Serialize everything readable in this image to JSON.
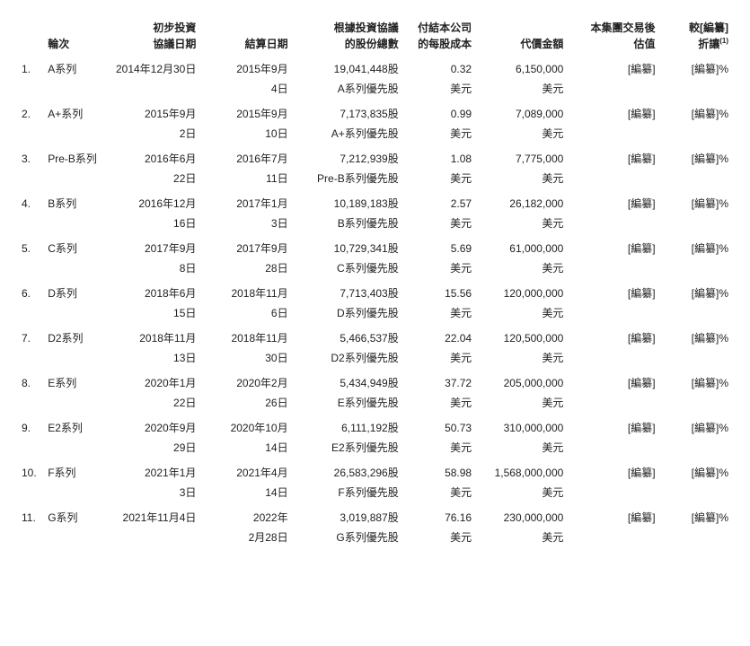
{
  "headers": {
    "round": "輪次",
    "initial_date": "初步投資\n協議日期",
    "closing_date": "結算日期",
    "total_shares": "根據投資協議\n的股份總數",
    "cost_per_share": "付結本公司\n的每股成本",
    "consideration": "代價金額",
    "valuation": "本集團交易後\n估值",
    "discount": "較[編纂]\n折讓",
    "discount_sup": "(1)"
  },
  "rows": [
    {
      "num": "1.",
      "round": "A系列",
      "initial_date_l1": "2014年12月30日",
      "initial_date_l2": "",
      "closing_date_l1": "2015年9月",
      "closing_date_l2": "4日",
      "shares_l1": "19,041,448股",
      "shares_l2": "A系列優先股",
      "cost_l1": "0.32",
      "cost_l2": "美元",
      "amount_l1": "6,150,000",
      "amount_l2": "美元",
      "valuation": "[編纂]",
      "discount": "[編纂]%"
    },
    {
      "num": "2.",
      "round": "A+系列",
      "initial_date_l1": "2015年9月",
      "initial_date_l2": "2日",
      "closing_date_l1": "2015年9月",
      "closing_date_l2": "10日",
      "shares_l1": "7,173,835股",
      "shares_l2": "A+系列優先股",
      "cost_l1": "0.99",
      "cost_l2": "美元",
      "amount_l1": "7,089,000",
      "amount_l2": "美元",
      "valuation": "[編纂]",
      "discount": "[編纂]%"
    },
    {
      "num": "3.",
      "round": "Pre-B系列",
      "initial_date_l1": "2016年6月",
      "initial_date_l2": "22日",
      "closing_date_l1": "2016年7月",
      "closing_date_l2": "11日",
      "shares_l1": "7,212,939股",
      "shares_l2": "Pre-B系列優先股",
      "cost_l1": "1.08",
      "cost_l2": "美元",
      "amount_l1": "7,775,000",
      "amount_l2": "美元",
      "valuation": "[編纂]",
      "discount": "[編纂]%"
    },
    {
      "num": "4.",
      "round": "B系列",
      "initial_date_l1": "2016年12月",
      "initial_date_l2": "16日",
      "closing_date_l1": "2017年1月",
      "closing_date_l2": "3日",
      "shares_l1": "10,189,183股",
      "shares_l2": "B系列優先股",
      "cost_l1": "2.57",
      "cost_l2": "美元",
      "amount_l1": "26,182,000",
      "amount_l2": "美元",
      "valuation": "[編纂]",
      "discount": "[編纂]%"
    },
    {
      "num": "5.",
      "round": "C系列",
      "initial_date_l1": "2017年9月",
      "initial_date_l2": "8日",
      "closing_date_l1": "2017年9月",
      "closing_date_l2": "28日",
      "shares_l1": "10,729,341股",
      "shares_l2": "C系列優先股",
      "cost_l1": "5.69",
      "cost_l2": "美元",
      "amount_l1": "61,000,000",
      "amount_l2": "美元",
      "valuation": "[編纂]",
      "discount": "[編纂]%"
    },
    {
      "num": "6.",
      "round": "D系列",
      "initial_date_l1": "2018年6月",
      "initial_date_l2": "15日",
      "closing_date_l1": "2018年11月",
      "closing_date_l2": "6日",
      "shares_l1": "7,713,403股",
      "shares_l2": "D系列優先股",
      "cost_l1": "15.56",
      "cost_l2": "美元",
      "amount_l1": "120,000,000",
      "amount_l2": "美元",
      "valuation": "[編纂]",
      "discount": "[編纂]%"
    },
    {
      "num": "7.",
      "round": "D2系列",
      "initial_date_l1": "2018年11月",
      "initial_date_l2": "13日",
      "closing_date_l1": "2018年11月",
      "closing_date_l2": "30日",
      "shares_l1": "5,466,537股",
      "shares_l2": "D2系列優先股",
      "cost_l1": "22.04",
      "cost_l2": "美元",
      "amount_l1": "120,500,000",
      "amount_l2": "美元",
      "valuation": "[編纂]",
      "discount": "[編纂]%"
    },
    {
      "num": "8.",
      "round": "E系列",
      "initial_date_l1": "2020年1月",
      "initial_date_l2": "22日",
      "closing_date_l1": "2020年2月",
      "closing_date_l2": "26日",
      "shares_l1": "5,434,949股",
      "shares_l2": "E系列優先股",
      "cost_l1": "37.72",
      "cost_l2": "美元",
      "amount_l1": "205,000,000",
      "amount_l2": "美元",
      "valuation": "[編纂]",
      "discount": "[編纂]%"
    },
    {
      "num": "9.",
      "round": "E2系列",
      "initial_date_l1": "2020年9月",
      "initial_date_l2": "29日",
      "closing_date_l1": "2020年10月",
      "closing_date_l2": "14日",
      "shares_l1": "6,111,192股",
      "shares_l2": "E2系列優先股",
      "cost_l1": "50.73",
      "cost_l2": "美元",
      "amount_l1": "310,000,000",
      "amount_l2": "美元",
      "valuation": "[編纂]",
      "discount": "[編纂]%"
    },
    {
      "num": "10.",
      "round": "F系列",
      "initial_date_l1": "2021年1月",
      "initial_date_l2": "3日",
      "closing_date_l1": "2021年4月",
      "closing_date_l2": "14日",
      "shares_l1": "26,583,296股",
      "shares_l2": "F系列優先股",
      "cost_l1": "58.98",
      "cost_l2": "美元",
      "amount_l1": "1,568,000,000",
      "amount_l2": "美元",
      "valuation": "[編纂]",
      "discount": "[編纂]%"
    },
    {
      "num": "11.",
      "round": "G系列",
      "initial_date_l1": "2021年11月4日",
      "initial_date_l2": "",
      "closing_date_l1": "2022年",
      "closing_date_l2": "2月28日",
      "shares_l1": "3,019,887股",
      "shares_l2": "G系列優先股",
      "cost_l1": "76.16",
      "cost_l2": "美元",
      "amount_l1": "230,000,000",
      "amount_l2": "美元",
      "valuation": "[編纂]",
      "discount": "[編纂]%"
    }
  ]
}
